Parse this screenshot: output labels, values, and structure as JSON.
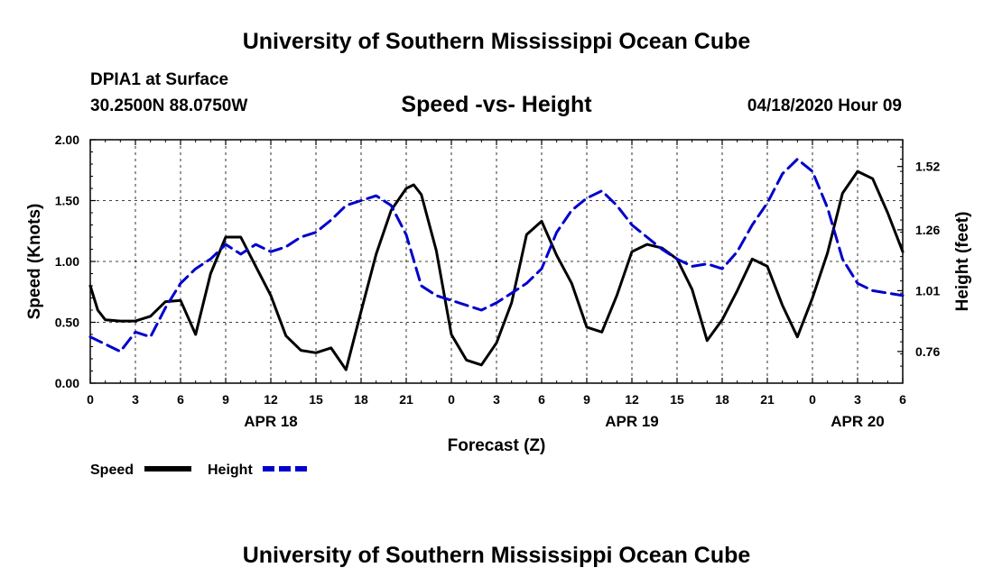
{
  "header": {
    "title": "University of Southern Mississippi Ocean Cube",
    "station": "DPIA1 at Surface",
    "coords": "30.2500N 88.0750W",
    "chart_title": "Speed -vs- Height",
    "timestamp": "04/18/2020 Hour 09"
  },
  "footer": {
    "title": "University of Southern Mississippi Ocean Cube"
  },
  "colors": {
    "speed": "#000000",
    "height": "#0000cc"
  },
  "chart_data": {
    "type": "line",
    "title": "Speed -vs- Height",
    "xlabel": "Forecast (Z)",
    "ylabel": "Speed (Knots)",
    "y2label": "Height (feet)",
    "xlim": [
      0,
      54
    ],
    "ylim": [
      0,
      2
    ],
    "y2lim": [
      0.63,
      1.63
    ],
    "grid": "dashed",
    "legend_position": "bottom-left",
    "x_ticks": [
      0,
      3,
      6,
      9,
      12,
      15,
      18,
      21,
      24,
      27,
      30,
      33,
      36,
      39,
      42,
      45,
      48,
      51,
      54
    ],
    "x_tick_labels": [
      "0",
      "3",
      "6",
      "9",
      "12",
      "15",
      "18",
      "21",
      "0",
      "3",
      "6",
      "9",
      "12",
      "15",
      "18",
      "21",
      "0",
      "3",
      "6"
    ],
    "y_ticks": [
      0,
      0.5,
      1,
      1.5,
      2
    ],
    "y_tick_labels": [
      "0.00",
      "0.50",
      "1.00",
      "1.50",
      "2.00"
    ],
    "y2_ticks": [
      0.76,
      1.01,
      1.26,
      1.52
    ],
    "y2_tick_labels": [
      "0.76",
      "1.01",
      "1.26",
      "1.52"
    ],
    "date_labels": [
      {
        "x": 12,
        "label": "APR 18"
      },
      {
        "x": 36,
        "label": "APR 19"
      },
      {
        "x": 51,
        "label": "APR 20"
      }
    ],
    "series": [
      {
        "name": "Speed",
        "axis": "left",
        "x": [
          0,
          0.5,
          1,
          2,
          3,
          4,
          5,
          6,
          7,
          8,
          9,
          10,
          11,
          12,
          13,
          14,
          15,
          16,
          17,
          18,
          19,
          20,
          21,
          21.5,
          22,
          23,
          24,
          25,
          26,
          27,
          28,
          29,
          30,
          31,
          32,
          33,
          34,
          35,
          36,
          37,
          38,
          39,
          40,
          41,
          42,
          43,
          44,
          45,
          46,
          47,
          48,
          49,
          50,
          51,
          52,
          53,
          54
        ],
        "values": [
          0.8,
          0.6,
          0.52,
          0.51,
          0.51,
          0.55,
          0.67,
          0.68,
          0.4,
          0.9,
          1.2,
          1.2,
          0.96,
          0.72,
          0.39,
          0.27,
          0.25,
          0.29,
          0.11,
          0.59,
          1.06,
          1.42,
          1.6,
          1.63,
          1.55,
          1.09,
          0.4,
          0.19,
          0.15,
          0.33,
          0.66,
          1.22,
          1.33,
          1.05,
          0.82,
          0.46,
          0.42,
          0.72,
          1.08,
          1.14,
          1.11,
          1.02,
          0.77,
          0.35,
          0.52,
          0.76,
          1.02,
          0.96,
          0.64,
          0.38,
          0.7,
          1.07,
          1.56,
          1.74,
          1.68,
          1.4,
          1.08
        ]
      },
      {
        "name": "Height",
        "axis": "right",
        "x": [
          0,
          1,
          2,
          3,
          4,
          5,
          6,
          7,
          8,
          9,
          10,
          11,
          12,
          13,
          14,
          15,
          16,
          17,
          18,
          19,
          20,
          21,
          22,
          23,
          24,
          25,
          26,
          27,
          28,
          29,
          30,
          31,
          32,
          33,
          34,
          35,
          36,
          37,
          38,
          39,
          40,
          41,
          42,
          43,
          44,
          45,
          46,
          47,
          48,
          49,
          50,
          51,
          52,
          53,
          54
        ],
        "values": [
          0.82,
          0.79,
          0.76,
          0.84,
          0.82,
          0.94,
          1.04,
          1.1,
          1.14,
          1.2,
          1.16,
          1.2,
          1.17,
          1.19,
          1.23,
          1.25,
          1.3,
          1.36,
          1.38,
          1.4,
          1.36,
          1.24,
          1.03,
          0.99,
          0.97,
          0.95,
          0.93,
          0.96,
          1.0,
          1.04,
          1.1,
          1.25,
          1.34,
          1.39,
          1.42,
          1.36,
          1.28,
          1.23,
          1.18,
          1.14,
          1.11,
          1.12,
          1.1,
          1.17,
          1.28,
          1.37,
          1.49,
          1.55,
          1.5,
          1.35,
          1.14,
          1.04,
          1.01,
          1.0,
          0.99
        ]
      }
    ]
  },
  "legend": [
    {
      "label": "Speed",
      "color": "#000000"
    },
    {
      "label": "Height",
      "color": "#0000cc"
    }
  ]
}
